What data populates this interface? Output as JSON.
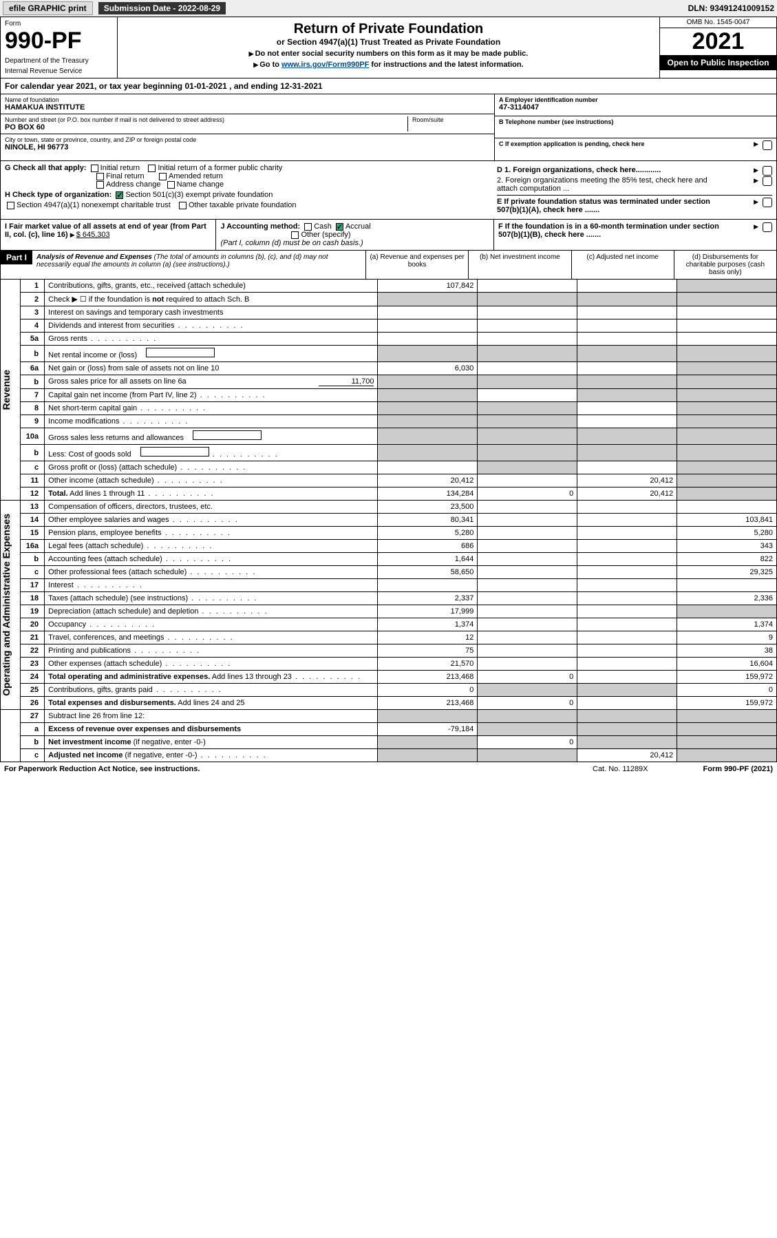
{
  "topbar": {
    "efile_btn": "efile GRAPHIC print",
    "sub_date": "Submission Date - 2022-08-29",
    "dln": "DLN: 93491241009152"
  },
  "header": {
    "form_label": "Form",
    "form_no": "990-PF",
    "dept1": "Department of the Treasury",
    "dept2": "Internal Revenue Service",
    "title": "Return of Private Foundation",
    "subtitle": "or Section 4947(a)(1) Trust Treated as Private Foundation",
    "inst1": "Do not enter social security numbers on this form as it may be made public.",
    "inst2_pre": "Go to ",
    "inst2_link": "www.irs.gov/Form990PF",
    "inst2_post": " for instructions and the latest information.",
    "omb": "OMB No. 1545-0047",
    "year": "2021",
    "open": "Open to Public Inspection"
  },
  "calyear": "For calendar year 2021, or tax year beginning 01-01-2021                         , and ending 12-31-2021",
  "info": {
    "name_lbl": "Name of foundation",
    "name": "HAMAKUA INSTITUTE",
    "addr_lbl": "Number and street (or P.O. box number if mail is not delivered to street address)",
    "addr": "PO BOX 60",
    "room_lbl": "Room/suite",
    "city_lbl": "City or town, state or province, country, and ZIP or foreign postal code",
    "city": "NINOLE, HI  96773",
    "ein_lbl": "A Employer identification number",
    "ein": "47-3114047",
    "tel_lbl": "B Telephone number (see instructions)",
    "c_lbl": "C If exemption application is pending, check here",
    "d1_lbl": "D 1. Foreign organizations, check here............",
    "d2_lbl": "2. Foreign organizations meeting the 85% test, check here and attach computation ...",
    "e_lbl": "E  If private foundation status was terminated under section 507(b)(1)(A), check here .......",
    "f_lbl": "F  If the foundation is in a 60-month termination under section 507(b)(1)(B), check here .......",
    "g_lbl": "G Check all that apply:",
    "g_opts": [
      "Initial return",
      "Initial return of a former public charity",
      "Final return",
      "Amended return",
      "Address change",
      "Name change"
    ],
    "h_lbl": "H Check type of organization:",
    "h_opt1": "Section 501(c)(3) exempt private foundation",
    "h_opt2": "Section 4947(a)(1) nonexempt charitable trust",
    "h_opt3": "Other taxable private foundation",
    "i_lbl": "I Fair market value of all assets at end of year (from Part II, col. (c), line 16)",
    "i_val": "$  645,303",
    "j_lbl": "J Accounting method:",
    "j_cash": "Cash",
    "j_accr": "Accrual",
    "j_other": "Other (specify)",
    "j_note": "(Part I, column (d) must be on cash basis.)"
  },
  "part1": {
    "label": "Part I",
    "title": "Analysis of Revenue and Expenses",
    "note": "(The total of amounts in columns (b), (c), and (d) may not necessarily equal the amounts in column (a) (see instructions).)",
    "cols": {
      "a": "(a)   Revenue and expenses per books",
      "b": "(b)   Net investment income",
      "c": "(c)   Adjusted net income",
      "d": "(d)   Disbursements for charitable purposes (cash basis only)"
    }
  },
  "sections": {
    "revenue": "Revenue",
    "expenses": "Operating and Administrative Expenses"
  },
  "rows": [
    {
      "n": "1",
      "l": "Contributions, gifts, grants, etc., received (attach schedule)",
      "a": "107,842",
      "d_shade": true
    },
    {
      "n": "2",
      "l": "Check ▶ ☐ if the foundation is <b>not</b> required to attach Sch. B",
      "allshade": true,
      "no_a": true
    },
    {
      "n": "3",
      "l": "Interest on savings and temporary cash investments"
    },
    {
      "n": "4",
      "l": "Dividends and interest from securities",
      "dots": true
    },
    {
      "n": "5a",
      "l": "Gross rents",
      "dots": true
    },
    {
      "n": "b",
      "l": "Net rental income or (loss)",
      "allshade": true,
      "inline_box": true
    },
    {
      "n": "6a",
      "l": "Net gain or (loss) from sale of assets not on line 10",
      "a": "6,030",
      "d_shade": true
    },
    {
      "n": "b",
      "l": "Gross sales price for all assets on line 6a",
      "allshade": true,
      "inline_val": "11,700"
    },
    {
      "n": "7",
      "l": "Capital gain net income (from Part IV, line 2)",
      "dots": true,
      "a_shade": true,
      "c_shade": true,
      "d_shade": true
    },
    {
      "n": "8",
      "l": "Net short-term capital gain",
      "dots": true,
      "a_shade": true,
      "b_shade": true,
      "d_shade": true
    },
    {
      "n": "9",
      "l": "Income modifications",
      "dots": true,
      "a_shade": true,
      "b_shade": true,
      "d_shade": true
    },
    {
      "n": "10a",
      "l": "Gross sales less returns and allowances",
      "allshade": true,
      "inline_box": true
    },
    {
      "n": "b",
      "l": "Less: Cost of goods sold",
      "dots": true,
      "allshade": true,
      "inline_box": true
    },
    {
      "n": "c",
      "l": "Gross profit or (loss) (attach schedule)",
      "dots": true,
      "b_shade": true,
      "d_shade": true
    },
    {
      "n": "11",
      "l": "Other income (attach schedule)",
      "dots": true,
      "a": "20,412",
      "c": "20,412",
      "d_shade": true
    },
    {
      "n": "12",
      "l": "<b>Total.</b> Add lines 1 through 11",
      "dots": true,
      "a": "134,284",
      "b": "0",
      "c": "20,412",
      "d_shade": true
    }
  ],
  "rows2": [
    {
      "n": "13",
      "l": "Compensation of officers, directors, trustees, etc.",
      "a": "23,500"
    },
    {
      "n": "14",
      "l": "Other employee salaries and wages",
      "dots": true,
      "a": "80,341",
      "d": "103,841"
    },
    {
      "n": "15",
      "l": "Pension plans, employee benefits",
      "dots": true,
      "a": "5,280",
      "d": "5,280"
    },
    {
      "n": "16a",
      "l": "Legal fees (attach schedule)",
      "dots": true,
      "a": "686",
      "d": "343"
    },
    {
      "n": "b",
      "l": "Accounting fees (attach schedule)",
      "dots": true,
      "a": "1,644",
      "d": "822"
    },
    {
      "n": "c",
      "l": "Other professional fees (attach schedule)",
      "dots": true,
      "a": "58,650",
      "d": "29,325"
    },
    {
      "n": "17",
      "l": "Interest",
      "dots": true
    },
    {
      "n": "18",
      "l": "Taxes (attach schedule) (see instructions)",
      "dots": true,
      "a": "2,337",
      "d": "2,336"
    },
    {
      "n": "19",
      "l": "Depreciation (attach schedule) and depletion",
      "dots": true,
      "a": "17,999",
      "d_shade": true
    },
    {
      "n": "20",
      "l": "Occupancy",
      "dots": true,
      "a": "1,374",
      "d": "1,374"
    },
    {
      "n": "21",
      "l": "Travel, conferences, and meetings",
      "dots": true,
      "a": "12",
      "d": "9"
    },
    {
      "n": "22",
      "l": "Printing and publications",
      "dots": true,
      "a": "75",
      "d": "38"
    },
    {
      "n": "23",
      "l": "Other expenses (attach schedule)",
      "dots": true,
      "a": "21,570",
      "d": "16,604"
    },
    {
      "n": "24",
      "l": "<b>Total operating and administrative expenses.</b> Add lines 13 through 23",
      "dots": true,
      "a": "213,468",
      "b": "0",
      "d": "159,972"
    },
    {
      "n": "25",
      "l": "Contributions, gifts, grants paid",
      "dots": true,
      "a": "0",
      "b_shade": true,
      "c_shade": true,
      "d": "0"
    },
    {
      "n": "26",
      "l": "<b>Total expenses and disbursements.</b> Add lines 24 and 25",
      "a": "213,468",
      "b": "0",
      "d": "159,972"
    }
  ],
  "rows3": [
    {
      "n": "27",
      "l": "Subtract line 26 from line 12:",
      "allshade": true
    },
    {
      "n": "a",
      "l": "<b>Excess of revenue over expenses and disbursements</b>",
      "a": "-79,184",
      "b_shade": true,
      "c_shade": true,
      "d_shade": true
    },
    {
      "n": "b",
      "l": "<b>Net investment income</b> (if negative, enter -0-)",
      "a_shade": true,
      "b": "0",
      "c_shade": true,
      "d_shade": true
    },
    {
      "n": "c",
      "l": "<b>Adjusted net income</b> (if negative, enter -0-)",
      "dots": true,
      "a_shade": true,
      "b_shade": true,
      "c": "20,412",
      "d_shade": true
    }
  ],
  "footer": {
    "f1": "For Paperwork Reduction Act Notice, see instructions.",
    "f2": "Cat. No. 11289X",
    "f3": "Form 990-PF (2021)"
  }
}
